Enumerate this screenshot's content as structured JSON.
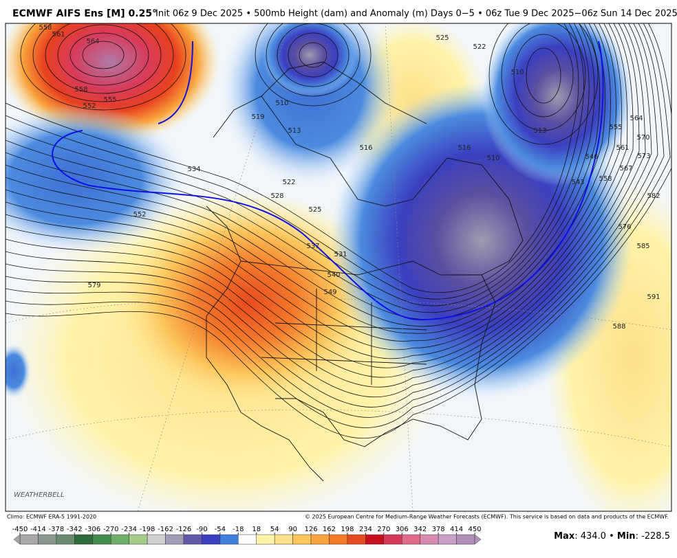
{
  "header": {
    "model": "ECMWF AIFS Ens [M] 0.25°",
    "details": "Init 06z 9 Dec 2025 • 500mb Height (dam) and Anomaly (m) Days 0−5 • 06z Tue 9 Dec 2025−06z Sun 14 Dec 2025"
  },
  "map": {
    "logo": "WEATHERBELL",
    "contour_labels": [
      "558",
      "561",
      "564",
      "558",
      "555",
      "552",
      "534",
      "552",
      "579",
      "522",
      "528",
      "525",
      "537",
      "531",
      "540",
      "549",
      "519",
      "510",
      "513",
      "516",
      "516",
      "510",
      "513",
      "510",
      "525",
      "522",
      "543",
      "546",
      "555",
      "558",
      "561",
      "564",
      "567",
      "570",
      "573",
      "582",
      "576",
      "585",
      "591",
      "588"
    ]
  },
  "footer": {
    "climo": "Climo: ECMWF ERA-5 1991-2020",
    "copyright": "© 2025 European Centre for Medium-Range Weather Forecasts (ECMWF). This service is based on data and products of the ECMWF."
  },
  "colorbar": {
    "ticks": [
      -450,
      -414,
      -378,
      -342,
      -306,
      -270,
      -234,
      -198,
      -162,
      -126,
      -90,
      -54,
      -18,
      18,
      54,
      90,
      126,
      162,
      198,
      234,
      270,
      306,
      342,
      378,
      414,
      450
    ],
    "colors": [
      "#a8a8a8",
      "#8a968b",
      "#6a8a70",
      "#2f6b3a",
      "#3f8c4c",
      "#6fae6a",
      "#a6cc8a",
      "#cfcfcf",
      "#a29cb6",
      "#6258a8",
      "#3b3fc0",
      "#3f7fde",
      "#ffffff",
      "#fff3a8",
      "#fde08a",
      "#fcc65c",
      "#f9a43c",
      "#f47a2a",
      "#e54a20",
      "#c8101c",
      "#d63a5a",
      "#e06a8a",
      "#d88ab0",
      "#c8a0c8",
      "#b090b8"
    ]
  },
  "stats": {
    "max_label": "Max",
    "max": "434.0",
    "separator": "•",
    "min_label": "Min",
    "min": "-228.5"
  }
}
